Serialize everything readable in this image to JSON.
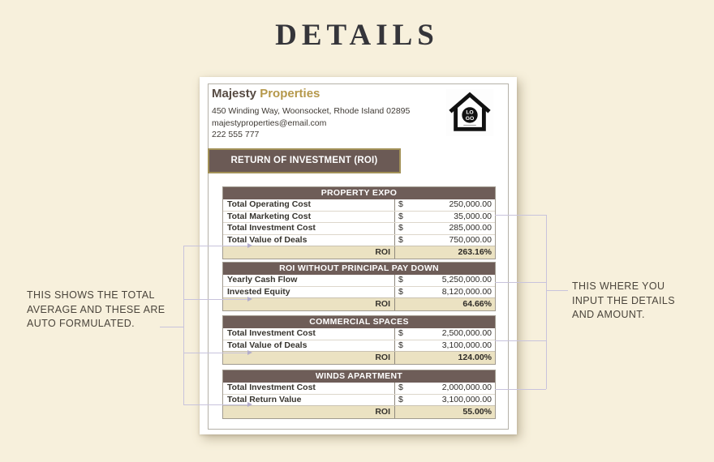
{
  "page": {
    "title": "DETAILS"
  },
  "document": {
    "company": {
      "name_primary": "Majesty",
      "name_secondary": "Properties",
      "address": "450 Winding Way, Woonsocket, Rhode Island 02895",
      "email": "majestyproperties@email.com",
      "phone": "222 555 777"
    },
    "logo": {
      "line1": "LO",
      "line2": "GO"
    },
    "banner": "RETURN OF INVESTMENT (ROI)",
    "tables": [
      {
        "title": "PROPERTY EXPO",
        "rows": [
          {
            "label": "Total Operating Cost",
            "currency": "$",
            "amount": "250,000.00"
          },
          {
            "label": "Total Marketing Cost",
            "currency": "$",
            "amount": "35,000.00"
          },
          {
            "label": "Total Investment Cost",
            "currency": "$",
            "amount": "285,000.00"
          },
          {
            "label": "Total Value of Deals",
            "currency": "$",
            "amount": "750,000.00"
          }
        ],
        "footer": {
          "label": "ROI",
          "value": "263.16%"
        }
      },
      {
        "title": "ROI WITHOUT PRINCIPAL PAY DOWN",
        "rows": [
          {
            "label": "Yearly Cash Flow",
            "currency": "$",
            "amount": "5,250,000.00"
          },
          {
            "label": "Invested Equity",
            "currency": "$",
            "amount": "8,120,000.00"
          }
        ],
        "footer": {
          "label": "ROI",
          "value": "64.66%"
        }
      },
      {
        "title": "COMMERCIAL SPACES",
        "rows": [
          {
            "label": "Total Investment Cost",
            "currency": "$",
            "amount": "2,500,000.00"
          },
          {
            "label": "Total Value of Deals",
            "currency": "$",
            "amount": "3,100,000.00"
          }
        ],
        "footer": {
          "label": "ROI",
          "value": "124.00%"
        }
      },
      {
        "title": "WINDS APARTMENT",
        "rows": [
          {
            "label": "Total Investment Cost",
            "currency": "$",
            "amount": "2,000,000.00"
          },
          {
            "label": "Total Return Value",
            "currency": "$",
            "amount": "3,100,000.00"
          }
        ],
        "footer": {
          "label": "ROI",
          "value": "55.00%"
        }
      }
    ]
  },
  "annotations": {
    "left": "THIS SHOWS THE TOTAL AVERAGE AND THESE ARE AUTO FORMULATED.",
    "right": "THIS WHERE YOU INPUT THE DETAILS AND AMOUNT."
  },
  "colors": {
    "background": "#f7f0dc",
    "header_brown": "#6e5d58",
    "banner_brown": "#6b5a55",
    "banner_border_gold": "#a29158",
    "brand_gold": "#b5984b",
    "roi_row_bg": "#ebe2c2",
    "connector": "#c8c3dc"
  }
}
